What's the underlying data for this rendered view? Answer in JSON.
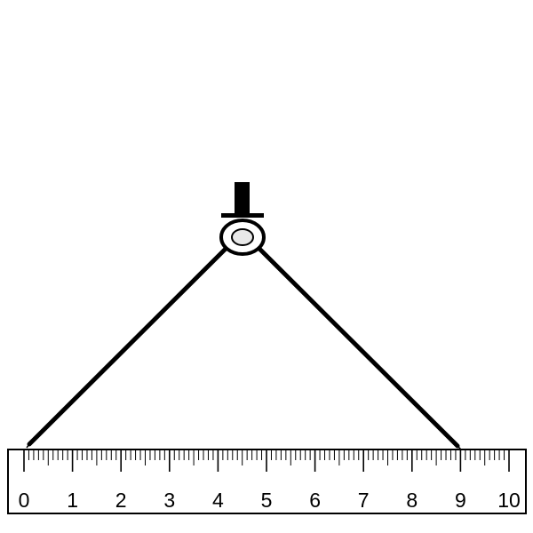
{
  "colors": {
    "ink": "#000000",
    "ruler_fill": "#ffffff",
    "hinge_fill": "#ffffff",
    "hinge_inner_fill": "#e8e8e8"
  },
  "ruler": {
    "min": 0,
    "max": 10,
    "minor_divisions_per_unit": 10,
    "labels": [
      "0",
      "1",
      "2",
      "3",
      "4",
      "5",
      "6",
      "7",
      "8",
      "9",
      "10"
    ]
  },
  "compass": {
    "left_tip_reading": 0.2,
    "right_tip_reading": 9.0
  }
}
